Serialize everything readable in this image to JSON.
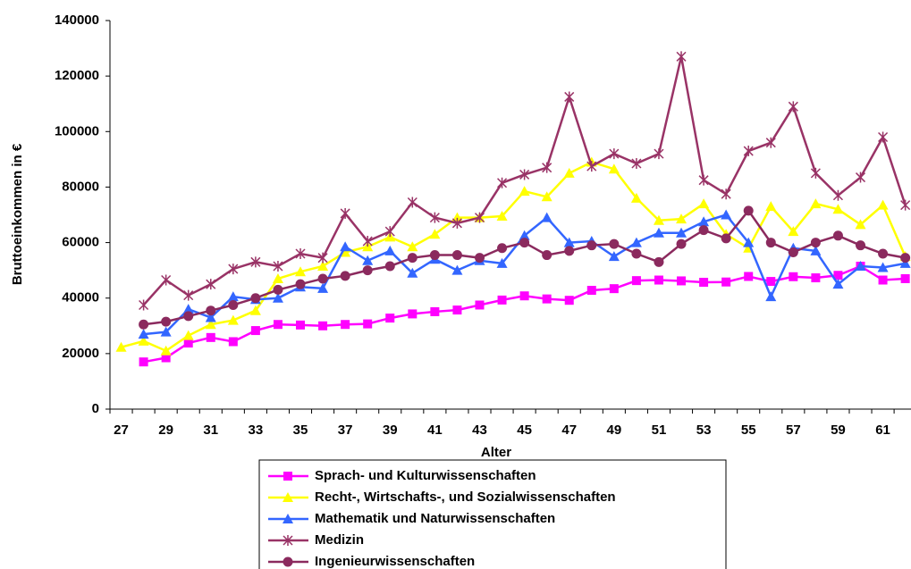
{
  "chart_data": {
    "type": "line",
    "x_label": "Alter",
    "y_label": "Bruttoeinkommen in €",
    "categories": [
      "27",
      null,
      "29",
      null,
      "31",
      null,
      "33",
      null,
      "35",
      null,
      "37",
      null,
      "39",
      null,
      "41",
      null,
      "43",
      null,
      "45",
      null,
      "47",
      null,
      "49",
      null,
      "51",
      null,
      "53",
      null,
      "55",
      null,
      "57",
      null,
      "59",
      null,
      "61",
      null
    ],
    "ylim": [
      0,
      140000
    ],
    "yticks": [
      0,
      20000,
      40000,
      60000,
      80000,
      100000,
      120000,
      140000
    ],
    "grid": false,
    "series": [
      {
        "name": "Sprach- und Kulturwissenschaften",
        "color": "#ff00ff",
        "marker": "square",
        "values": [
          null,
          17000,
          18500,
          23800,
          25800,
          24300,
          28300,
          30500,
          30300,
          30000,
          30500,
          30700,
          32800,
          34300,
          35100,
          35700,
          37500,
          39300,
          40800,
          39700,
          39200,
          42800,
          43400,
          46300,
          46500,
          46200,
          45700,
          45800,
          47800,
          46000,
          47700,
          47300,
          48200,
          51500,
          46500,
          47000
        ]
      },
      {
        "name": "Recht-, Wirtschafts-, und Sozialwissenschaften",
        "color": "#ffff00",
        "marker": "triangle",
        "values": [
          22300,
          24500,
          21000,
          26500,
          30500,
          32000,
          35500,
          47000,
          49500,
          51500,
          56500,
          58500,
          62000,
          58500,
          63000,
          69000,
          69000,
          69500,
          78500,
          76500,
          85000,
          89000,
          86500,
          76000,
          68000,
          68500,
          74000,
          63000,
          58000,
          73000,
          64000,
          74000,
          72000,
          66500,
          73500,
          55000
        ]
      },
      {
        "name": "Mathematik und Naturwissenschaften",
        "color": "#3366ff",
        "marker": "triangle",
        "values": [
          null,
          27000,
          27800,
          36000,
          33000,
          40500,
          39500,
          40000,
          44000,
          43500,
          58500,
          53500,
          57000,
          49000,
          54000,
          50000,
          53500,
          52500,
          62500,
          69000,
          60000,
          60500,
          55000,
          60000,
          63500,
          63500,
          67500,
          70000,
          60000,
          40500,
          58000,
          57000,
          45000,
          51500,
          51000,
          52500
        ]
      },
      {
        "name": "Medizin",
        "color": "#993366",
        "marker": "star",
        "values": [
          null,
          37500,
          46500,
          41000,
          45000,
          50500,
          53000,
          51500,
          56000,
          54500,
          70500,
          60500,
          64000,
          74500,
          69000,
          67000,
          69000,
          81500,
          84500,
          87000,
          112500,
          87500,
          92000,
          88500,
          92000,
          127000,
          82500,
          77500,
          93000,
          96000,
          109000,
          85000,
          77000,
          83500,
          98000,
          73500
        ]
      },
      {
        "name": "Ingenieurwissenschaften",
        "color": "#8b2a5e",
        "marker": "circle",
        "values": [
          null,
          30500,
          31500,
          33500,
          35500,
          37500,
          40000,
          43000,
          45000,
          47000,
          48000,
          50000,
          51500,
          54500,
          55500,
          55500,
          54500,
          58000,
          60000,
          55500,
          57000,
          59000,
          59500,
          56000,
          53000,
          59500,
          64500,
          61500,
          71500,
          60000,
          56500,
          60000,
          62500,
          59000,
          56000,
          54500
        ]
      }
    ]
  }
}
